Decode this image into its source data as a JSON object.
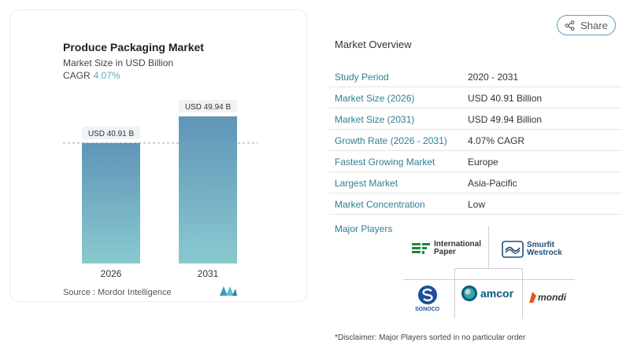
{
  "chart": {
    "title": "Produce Packaging Market",
    "subtitle": "Market Size in USD Billion",
    "cagr_label": "CAGR",
    "cagr_value": "4.07%",
    "source": "Source :  Mordor Intelligence"
  },
  "chart_data": {
    "type": "bar",
    "title": "Produce Packaging Market",
    "subtitle": "Market Size in USD Billion",
    "categories": [
      "2026",
      "2031"
    ],
    "values": [
      40.91,
      49.94
    ],
    "data_labels": [
      "USD 40.91 B",
      "USD 49.94 B"
    ],
    "ylim": [
      0,
      60
    ],
    "reference_line": 40.91,
    "grid": false,
    "colors": {
      "bar_top": "#5f95b8",
      "bar_bottom": "#8ac9cf"
    }
  },
  "share": {
    "label": "Share"
  },
  "overview": {
    "title": "Market Overview",
    "rows": [
      {
        "key": "Study Period",
        "value": "2020 - 2031"
      },
      {
        "key": "Market Size (2026)",
        "value": "USD 40.91 Billion"
      },
      {
        "key": "Market Size (2031)",
        "value": "USD 49.94 Billion"
      },
      {
        "key": "Growth Rate (2026 - 2031)",
        "value": "4.07% CAGR"
      },
      {
        "key": "Fastest Growing Market",
        "value": "Europe"
      },
      {
        "key": "Largest Market",
        "value": "Asia-Pacific"
      },
      {
        "key": "Market Concentration",
        "value": "Low"
      }
    ]
  },
  "players": {
    "title": "Major Players",
    "list": [
      {
        "name": "International Paper",
        "line1": "International",
        "line2": "Paper",
        "icon": "ip-logo-icon",
        "color": "#1a8a3a"
      },
      {
        "name": "Smurfit Westrock",
        "line1": "Smurfit",
        "line2": "Westrock",
        "icon": "smurfit-logo-icon",
        "color": "#1f4e79"
      },
      {
        "name": "Sonoco",
        "line1": "SONOCO",
        "icon": "sonoco-logo-icon",
        "color": "#1f4e9c"
      },
      {
        "name": "Amcor",
        "line1": "amcor",
        "icon": "amcor-logo-icon",
        "color": "#0a5a7d"
      },
      {
        "name": "Mondi",
        "line1": "mondi",
        "icon": "mondi-logo-icon",
        "color": "#e2571e"
      }
    ],
    "disclaimer": "*Disclaimer: Major Players sorted in no particular order"
  },
  "brand": {
    "icon": "mordor-logo-icon",
    "color": "#3aa0b8"
  }
}
